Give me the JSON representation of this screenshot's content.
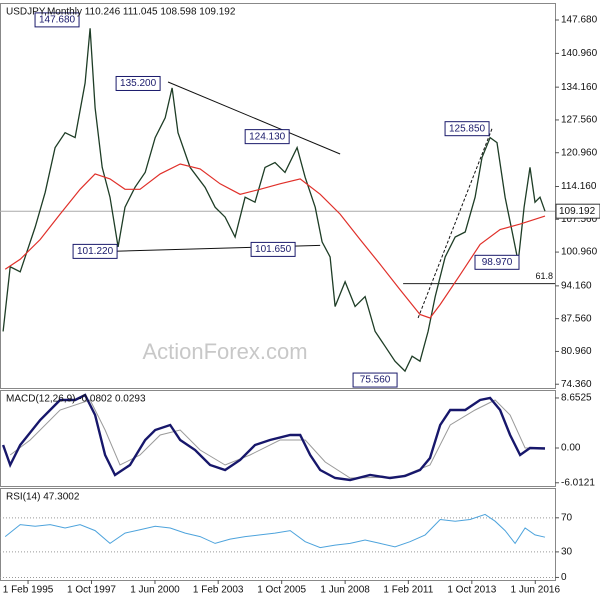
{
  "chart_data": [
    {
      "type": "line",
      "title": "USDJPY,Monthly  110.246 111.045 108.598 109.192",
      "watermark": "ActionForex.com",
      "xlim": [
        1993.9,
        2017.25
      ],
      "ylim": [
        73.6,
        151.1
      ],
      "yticks": [
        {
          "value": 147.68,
          "label": "147.680"
        },
        {
          "value": 140.96,
          "label": "140.960"
        },
        {
          "value": 134.16,
          "label": "134.160"
        },
        {
          "value": 127.56,
          "label": "127.560"
        },
        {
          "value": 120.96,
          "label": "120.960"
        },
        {
          "value": 114.16,
          "label": "114.160"
        },
        {
          "value": 107.56,
          "label": "107.560"
        },
        {
          "value": 100.96,
          "label": "100.960"
        },
        {
          "value": 94.16,
          "label": "94.160"
        },
        {
          "value": 87.56,
          "label": "87.560"
        },
        {
          "value": 80.96,
          "label": "80.960"
        },
        {
          "value": 74.36,
          "label": "74.360"
        }
      ],
      "series": [
        {
          "color": "#1e3d26",
          "width": 1.3,
          "x": [
            1994.03,
            1994.33,
            1994.75,
            1995.38,
            1995.8,
            1996.22,
            1996.64,
            1997.06,
            1997.48,
            1997.69,
            1997.9,
            1998.2,
            1998.53,
            1998.87,
            1999.16,
            1999.58,
            2000.01,
            2000.43,
            2000.85,
            2001.14,
            2001.39,
            2001.9,
            2002.53,
            2002.95,
            2003.37,
            2003.79,
            2004.21,
            2004.63,
            2005.05,
            2005.47,
            2005.89,
            2006.4,
            2006.74,
            2007.16,
            2007.45,
            2007.79,
            2008.0,
            2008.42,
            2008.84,
            2009.26,
            2009.68,
            2010.1,
            2010.52,
            2010.94,
            2011.24,
            2011.57,
            2011.91,
            2012.21,
            2012.63,
            2013.05,
            2013.47,
            2013.89,
            2014.18,
            2014.52,
            2014.81,
            2015.15,
            2015.45,
            2015.7,
            2015.95,
            2016.2,
            2016.41,
            2016.62,
            2016.83
          ],
          "values": [
            85,
            98,
            97,
            106,
            113,
            122,
            125,
            124,
            135,
            146,
            130,
            118,
            112,
            102,
            110,
            114,
            117,
            124,
            128,
            134,
            125,
            118,
            114,
            110,
            108,
            104,
            112,
            111,
            118,
            119,
            117,
            122,
            116,
            110,
            103,
            100,
            90,
            95,
            90,
            92,
            85,
            82,
            79,
            77,
            80,
            79,
            85,
            92,
            100,
            104,
            105,
            112,
            120,
            124,
            123,
            112,
            105,
            99,
            110,
            118,
            111,
            112,
            109.19
          ]
        },
        {
          "color": "#e0302a",
          "width": 1.2,
          "x": [
            1994.12,
            1994.75,
            1995.59,
            1996.43,
            1997.27,
            1997.9,
            1998.53,
            1999.16,
            1999.79,
            2000.64,
            2001.48,
            2002.32,
            2003.16,
            2004.0,
            2004.84,
            2005.68,
            2006.53,
            2007.37,
            2008.21,
            2009.05,
            2009.89,
            2010.73,
            2011.57,
            2011.99,
            2012.42,
            2013.26,
            2014.1,
            2014.94,
            2015.78,
            2016.83
          ],
          "values": [
            97.5,
            99.5,
            103.5,
            108.6,
            113.6,
            116.7,
            115.7,
            113.6,
            113.6,
            116.7,
            118.7,
            117.7,
            114.7,
            112.6,
            113.6,
            114.7,
            115.7,
            112.6,
            108.6,
            103.5,
            98.5,
            93.4,
            88.4,
            87.7,
            90.4,
            96.4,
            102.5,
            105.5,
            106.6,
            108.2
          ]
        }
      ],
      "annotations": [
        {
          "x": 1996.3,
          "value": 147.7,
          "label": "147.680"
        },
        {
          "x": 1999.71,
          "value": 134.9,
          "label": "135.200"
        },
        {
          "x": 2005.14,
          "value": 124.2,
          "label": "124.130"
        },
        {
          "x": 2013.55,
          "value": 125.8,
          "label": "125.850"
        },
        {
          "x": 1997.9,
          "value": 101.1,
          "label": "101.220"
        },
        {
          "x": 2005.39,
          "value": 101.5,
          "label": "101.650"
        },
        {
          "x": 2014.81,
          "value": 98.9,
          "label": "98.970"
        },
        {
          "x": 2009.68,
          "value": 75.2,
          "label": "75.560"
        }
      ],
      "trendlines": [
        {
          "x": [
            2000.97,
            2008.21
          ],
          "values": [
            135.2,
            120.7
          ],
          "dashed": false
        },
        {
          "x": [
            1998.53,
            2007.37
          ],
          "values": [
            101.1,
            102.3
          ],
          "dashed": false
        },
        {
          "x": [
            2011.49,
            2014.6
          ],
          "values": [
            87.7,
            125.8
          ],
          "dashed": true
        }
      ],
      "fib": {
        "label": 61.8,
        "value": 94.6,
        "x": [
          2010.86,
          2017.25
        ]
      },
      "last": 109.192
    },
    {
      "type": "line",
      "title": "MACD(12,26,9) -0.0802 0.0293",
      "xlim": [
        1993.9,
        2017.25
      ],
      "ylim": [
        -6.57,
        10.03
      ],
      "yticks": [
        8.6525,
        {
          "value": 0,
          "label": "0.00"
        },
        -6.0121
      ],
      "series": [
        {
          "color": "#9a9a9a",
          "width": 1,
          "x": [
            1994.33,
            1995.17,
            1996.43,
            1997.69,
            1998.32,
            1998.95,
            1999.79,
            2000.64,
            2001.48,
            2002.32,
            2003.37,
            2004.42,
            2005.68,
            2006.74,
            2007.58,
            2008.63,
            2010.73,
            2011.99,
            2012.84,
            2013.89,
            2014.73,
            2015.36,
            2015.99,
            2016.83
          ],
          "values": [
            -1.21,
            1.38,
            6.57,
            8.3,
            3.11,
            -2.94,
            -1.21,
            2.25,
            3.11,
            -0.35,
            -2.94,
            -1.21,
            1.38,
            1.38,
            -2.42,
            -5.19,
            -5.02,
            -2.94,
            3.98,
            6.57,
            8.3,
            5.71,
            0,
            0.03
          ]
        },
        {
          "color": "#17176b",
          "width": 2.4,
          "x": [
            1994.03,
            1994.33,
            1994.75,
            1995.59,
            1996.43,
            1997.06,
            1997.48,
            1997.9,
            1998.32,
            1998.74,
            1999.37,
            2000.01,
            2000.43,
            2001.06,
            2001.48,
            2002.11,
            2002.74,
            2003.37,
            2004.0,
            2004.63,
            2005.26,
            2006.11,
            2006.53,
            2006.95,
            2007.37,
            2008.0,
            2008.63,
            2009.47,
            2010.31,
            2010.94,
            2011.57,
            2011.99,
            2012.42,
            2012.84,
            2013.47,
            2014.1,
            2014.52,
            2014.94,
            2015.36,
            2015.78,
            2016.2,
            2016.83
          ],
          "values": [
            0.52,
            -2.94,
            0.52,
            4.84,
            8.3,
            8.3,
            9.17,
            5.71,
            -1.21,
            -4.67,
            -2.94,
            1.38,
            3.11,
            3.98,
            1.38,
            -0.35,
            -2.94,
            -3.81,
            -2.08,
            0.52,
            1.38,
            2.25,
            2.25,
            -1.21,
            -3.81,
            -5.19,
            -5.54,
            -4.67,
            -5.19,
            -4.84,
            -3.81,
            -1.73,
            3.98,
            6.57,
            6.57,
            8.3,
            8.65,
            6.57,
            2.25,
            -1.21,
            0,
            -0.08
          ]
        }
      ]
    },
    {
      "type": "line",
      "title": "RSI(14) 47.3002",
      "grid": true,
      "xlim": [
        1993.9,
        2017.25
      ],
      "ylim": [
        -3,
        105
      ],
      "yticks": [
        70,
        30,
        0
      ],
      "xticks": [
        {
          "value": 1995.08,
          "label": "1 Feb 1995"
        },
        {
          "value": 1997.75,
          "label": "1 Oct 1997"
        },
        {
          "value": 2000.42,
          "label": "1 Jun 2000"
        },
        {
          "value": 2003.08,
          "label": "1 Feb 2003"
        },
        {
          "value": 2005.75,
          "label": "1 Oct 2005"
        },
        {
          "value": 2008.42,
          "label": "1 Jun 2008"
        },
        {
          "value": 2011.08,
          "label": "1 Feb 2011"
        },
        {
          "value": 2013.75,
          "label": "1 Oct 2013"
        },
        {
          "value": 2016.42,
          "label": "1 Jun 2016"
        }
      ],
      "series": [
        {
          "color": "#4da3dc",
          "width": 1,
          "x": [
            1994.12,
            1994.75,
            1995.38,
            1996.01,
            1996.64,
            1997.27,
            1997.9,
            1998.53,
            1999.16,
            1999.79,
            2000.43,
            2001.06,
            2001.69,
            2002.32,
            2002.95,
            2003.58,
            2004.21,
            2004.84,
            2005.47,
            2006.11,
            2006.74,
            2007.37,
            2008.0,
            2008.63,
            2009.26,
            2009.89,
            2010.52,
            2011.15,
            2011.79,
            2012.42,
            2013.05,
            2013.68,
            2014.31,
            2014.73,
            2015.15,
            2015.57,
            2015.99,
            2016.41,
            2016.83
          ],
          "values": [
            48,
            62,
            60,
            62,
            58,
            62,
            55,
            40,
            52,
            56,
            60,
            58,
            52,
            48,
            40,
            45,
            48,
            50,
            52,
            55,
            42,
            35,
            38,
            40,
            44,
            40,
            36,
            42,
            50,
            68,
            66,
            68,
            74,
            66,
            55,
            40,
            58,
            50,
            47.3
          ]
        }
      ]
    }
  ]
}
